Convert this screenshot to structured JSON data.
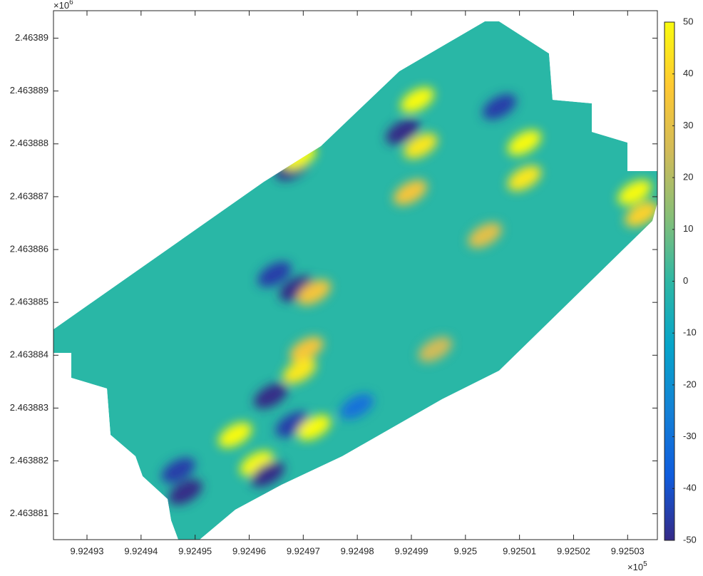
{
  "chart_data": {
    "type": "surface",
    "x_scale_base": "×10",
    "x_scale_exponent": "5",
    "y_scale_base": "×10",
    "y_scale_exponent": "6",
    "xlim": [
      992492.38,
      992503.55
    ],
    "ylim": [
      2463880.51,
      2463890.52
    ],
    "xticks": [
      {
        "value": 992493,
        "label": "9.92493"
      },
      {
        "value": 992494,
        "label": "9.92494"
      },
      {
        "value": 992495,
        "label": "9.92495"
      },
      {
        "value": 992496,
        "label": "9.92496"
      },
      {
        "value": 992497,
        "label": "9.92497"
      },
      {
        "value": 992498,
        "label": "9.92498"
      },
      {
        "value": 992499,
        "label": "9.92499"
      },
      {
        "value": 992500,
        "label": "9.925"
      },
      {
        "value": 992501,
        "label": "9.92501"
      },
      {
        "value": 992502,
        "label": "9.92502"
      },
      {
        "value": 992503,
        "label": "9.92503"
      }
    ],
    "yticks": [
      {
        "value": 2463881,
        "label": "2.463881"
      },
      {
        "value": 2463882,
        "label": "2.463882"
      },
      {
        "value": 2463883,
        "label": "2.463883"
      },
      {
        "value": 2463884,
        "label": "2.463884"
      },
      {
        "value": 2463885,
        "label": "2.463885"
      },
      {
        "value": 2463886,
        "label": "2.463886"
      },
      {
        "value": 2463887,
        "label": "2.463887"
      },
      {
        "value": 2463888,
        "label": "2.463888"
      },
      {
        "value": 2463889,
        "label": "2.463889"
      },
      {
        "value": 2463890,
        "label": "2.46389"
      }
    ],
    "clim": [
      -50,
      50
    ],
    "cticks": [
      -50,
      -40,
      -30,
      -20,
      -10,
      0,
      10,
      20,
      30,
      40,
      50
    ],
    "colormap": [
      "#352a87",
      "#0f5cdd",
      "#1481d6",
      "#06a4ca",
      "#2eb7a4",
      "#87bf77",
      "#d1bb59",
      "#fec832",
      "#f9fb0e"
    ],
    "x": [
      992499.11,
      992498.84,
      992499.17,
      992500.63,
      992501.09,
      992501.09,
      992496.8,
      992496.93,
      992498.98,
      992503.13,
      992503.26,
      992496.47,
      992496.87,
      992497.2,
      992497.06,
      992496.93,
      992496.4,
      992495.74,
      992496.8,
      992497.2,
      992496.14,
      992496.34,
      992494.82,
      992494.69,
      992497.99,
      992500.36,
      992499.44
    ],
    "y": [
      2463888.83,
      2463888.23,
      2463887.96,
      2463888.7,
      2463888.02,
      2463887.35,
      2463887.55,
      2463887.75,
      2463887.08,
      2463887.08,
      2463886.67,
      2463885.53,
      2463885.26,
      2463885.19,
      2463884.11,
      2463883.7,
      2463883.23,
      2463882.49,
      2463882.69,
      2463882.63,
      2463881.95,
      2463881.75,
      2463881.41,
      2463881.82,
      2463883.03,
      2463886.27,
      2463884.11
    ],
    "values": [
      50,
      -50,
      45,
      -45,
      50,
      45,
      -50,
      50,
      35,
      50,
      40,
      -45,
      -50,
      35,
      35,
      45,
      -50,
      50,
      -45,
      50,
      50,
      -50,
      -50,
      -45,
      -30,
      30,
      25
    ]
  }
}
